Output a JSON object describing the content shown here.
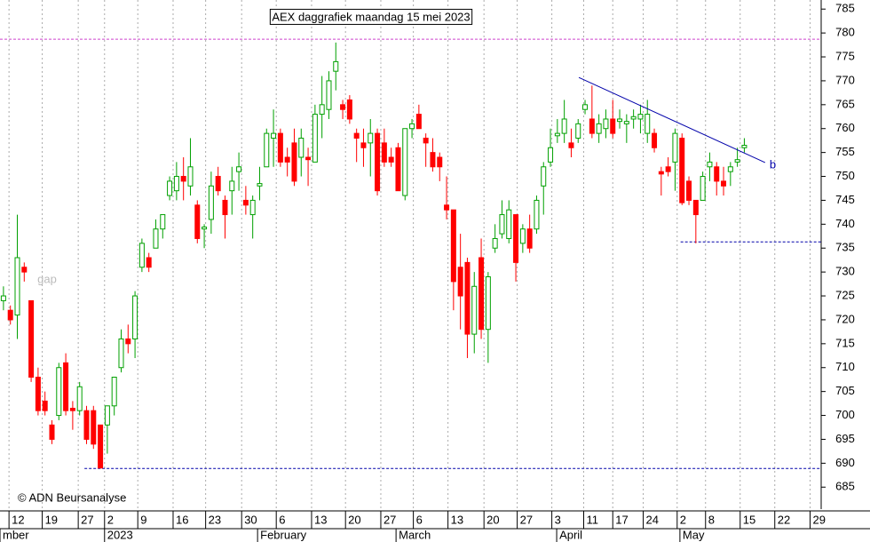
{
  "chart_data": {
    "type": "candlestick",
    "title": "AEX daggrafiek maandag 15 mei 2023",
    "source": "© ADN Beursanalyse",
    "up_color": "#00a000",
    "down_color": "#ff0000",
    "xlim": [
      -0.5,
      118.1
    ],
    "ylim": [
      680.4,
      786.9
    ],
    "yticks": [
      685,
      690,
      695,
      700,
      705,
      710,
      715,
      720,
      725,
      730,
      735,
      740,
      745,
      750,
      755,
      760,
      765,
      770,
      775,
      780,
      785
    ],
    "xticks": [
      {
        "value": 0.8,
        "label": "12"
      },
      {
        "value": 5.6,
        "label": "19"
      },
      {
        "value": 10.8,
        "label": "27"
      },
      {
        "value": 14.6,
        "label": "2"
      },
      {
        "value": 19.4,
        "label": "9"
      },
      {
        "value": 24.5,
        "label": "16"
      },
      {
        "value": 29.2,
        "label": "23"
      },
      {
        "value": 34.4,
        "label": "30"
      },
      {
        "value": 39.4,
        "label": "6"
      },
      {
        "value": 44.5,
        "label": "13"
      },
      {
        "value": 49.4,
        "label": "20"
      },
      {
        "value": 54.5,
        "label": "27"
      },
      {
        "value": 59.2,
        "label": "6"
      },
      {
        "value": 64.2,
        "label": "13"
      },
      {
        "value": 69.4,
        "label": "20"
      },
      {
        "value": 74.2,
        "label": "27"
      },
      {
        "value": 79.2,
        "label": "3"
      },
      {
        "value": 83.8,
        "label": "11"
      },
      {
        "value": 88.0,
        "label": "17"
      },
      {
        "value": 92.4,
        "label": "24"
      },
      {
        "value": 97.3,
        "label": "2"
      },
      {
        "value": 101.4,
        "label": "8"
      },
      {
        "value": 106.4,
        "label": "15"
      },
      {
        "value": 111.4,
        "label": "22"
      },
      {
        "value": 116.5,
        "label": "29"
      }
    ],
    "month_ticks": [
      {
        "value": -0.5,
        "label": "mber"
      },
      {
        "value": 14.6,
        "label": "2023"
      },
      {
        "value": 36.7,
        "label": "February"
      },
      {
        "value": 56.7,
        "label": "March"
      },
      {
        "value": 79.9,
        "label": "April"
      },
      {
        "value": 97.7,
        "label": "May"
      }
    ],
    "grid": true,
    "open": [
      724,
      722,
      721,
      731,
      724,
      708,
      703,
      698,
      700,
      711,
      701.5,
      701,
      701,
      701,
      698,
      698,
      702,
      710,
      716,
      716,
      731,
      733,
      735,
      739,
      746,
      747,
      750,
      748,
      744,
      739,
      741,
      750,
      745,
      747,
      751,
      745,
      742,
      748,
      752,
      758,
      759,
      754,
      757,
      754,
      754,
      753,
      763,
      764,
      772,
      765,
      766,
      759,
      757,
      757,
      759,
      757,
      754,
      756,
      746,
      760,
      763,
      758,
      755,
      754,
      744,
      743,
      731,
      732,
      717,
      733,
      718,
      735,
      738,
      737,
      742,
      736,
      739,
      739,
      748,
      753,
      758.5,
      759,
      757,
      758,
      764,
      762,
      759,
      760,
      762,
      761.5,
      761,
      762,
      762,
      759,
      759,
      751,
      752,
      753,
      758,
      749,
      745,
      745,
      752,
      752,
      749,
      751,
      753,
      756
    ],
    "high": [
      727,
      723,
      742,
      732,
      724,
      710,
      705,
      699,
      711,
      713,
      703,
      707,
      702,
      702,
      698,
      702,
      708,
      718,
      719,
      726,
      737,
      734,
      741,
      742,
      750,
      753,
      754,
      758,
      745,
      740,
      751,
      752,
      746,
      752,
      755,
      748,
      746,
      752,
      760,
      764,
      760,
      756,
      760,
      760,
      756,
      765,
      771,
      772,
      778,
      766,
      767,
      760,
      760,
      762,
      760,
      760,
      756,
      757,
      760,
      762,
      765,
      759,
      758,
      755,
      750,
      743,
      738,
      733,
      730,
      737,
      730,
      740,
      745,
      745,
      742,
      740,
      742,
      746,
      753,
      760,
      762,
      766,
      760,
      762,
      766,
      769,
      763,
      764,
      766,
      764,
      763,
      764,
      765,
      766,
      760,
      752,
      754,
      760,
      759,
      750,
      745,
      751,
      755,
      753,
      752,
      753,
      756,
      758
    ],
    "low": [
      722,
      719,
      716,
      728,
      707,
      700,
      700,
      694,
      699,
      700,
      697,
      700,
      694,
      693,
      689,
      692,
      700,
      709,
      713,
      712,
      730,
      730,
      735,
      737,
      745,
      745,
      745,
      746,
      736,
      735,
      738,
      746,
      737,
      742,
      747,
      742,
      737,
      745,
      752,
      752,
      752,
      750,
      748,
      750,
      748,
      753,
      758,
      762,
      768,
      762,
      761,
      753,
      752,
      750,
      746,
      752,
      752,
      747,
      745,
      758,
      760,
      752,
      751,
      749,
      741,
      722,
      718,
      712,
      713,
      716,
      711,
      734,
      737,
      736,
      728,
      734,
      734,
      738,
      742,
      752,
      757,
      757,
      754,
      757,
      763,
      758,
      757,
      758,
      758,
      760,
      757,
      760,
      759,
      757,
      755,
      746,
      750,
      747,
      744,
      744,
      736,
      745,
      749,
      746,
      746,
      748,
      752,
      755
    ],
    "close": [
      725,
      720,
      733,
      730,
      708,
      701,
      701,
      695,
      710,
      701,
      701,
      706,
      695,
      694,
      689,
      702,
      708,
      716,
      715,
      725,
      736,
      731,
      739,
      742,
      749,
      750,
      749,
      752,
      737,
      739.4,
      748,
      747,
      742,
      749,
      752,
      744,
      745,
      748.5,
      759,
      759,
      753,
      753,
      749,
      758,
      753.5,
      763,
      765,
      770,
      774,
      764,
      762,
      758,
      756,
      759,
      747,
      753,
      753,
      747,
      760,
      761,
      760,
      757,
      752,
      752,
      743,
      728,
      725,
      717,
      727,
      718,
      729,
      737,
      742,
      743,
      732,
      739,
      735,
      745,
      752,
      756,
      759,
      762,
      756,
      761,
      765,
      759,
      761,
      762,
      759,
      762,
      761.5,
      762.5,
      763,
      763,
      756,
      750.5,
      751,
      759,
      744.5,
      745,
      742,
      750,
      753,
      749,
      748,
      752,
      753.5,
      756.5
    ],
    "reference_lines": [
      {
        "value": 778.7,
        "from": -0.5,
        "color": "#cc44cc"
      },
      {
        "value": 736.3,
        "from": 97.8,
        "color": "#0000aa"
      },
      {
        "value": 688.9,
        "from": 11.7,
        "color": "#0000aa"
      }
    ],
    "trendline": {
      "x": [
        83.1,
        110.0
      ],
      "y": [
        770.7,
        752.9
      ],
      "label": "b",
      "color": "#0000aa"
    },
    "annotation": {
      "text": "gap",
      "x": 4.9,
      "y": 728.3
    }
  }
}
